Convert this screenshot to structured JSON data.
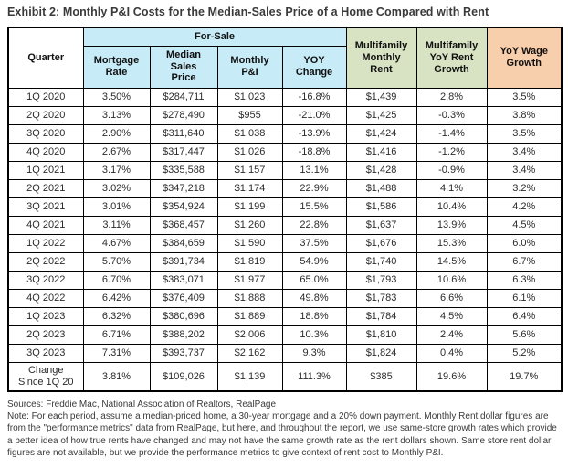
{
  "title": "Exhibit 2: Monthly P&I Costs for the Median-Sales Price of a Home Compared with Rent",
  "colors": {
    "for_sale_header": "#c7ebf7",
    "multifamily_header": "#d8e3c3",
    "wage_header": "#f8cfad",
    "border": "#000000",
    "background": "#ffffff"
  },
  "table": {
    "header": {
      "quarter": "Quarter",
      "for_sale_group": "For-Sale",
      "mortgage_rate": "Mortgage\nRate",
      "median_sales_price": "Median\nSales\nPrice",
      "monthly_pi": "Monthly\nP&I",
      "yoy_change": "YOY\nChange",
      "multifamily_monthly_rent": "Multifamily\nMonthly\nRent",
      "multifamily_yoy_rent_growth": "Multifamily\nYoY Rent\nGrowth",
      "yoy_wage_growth": "YoY Wage\nGrowth"
    },
    "rows": [
      {
        "quarter": "1Q 2020",
        "values": [
          "3.50%",
          "$284,711",
          "$1,023",
          "-16.8%",
          "$1,439",
          "2.8%",
          "3.5%"
        ]
      },
      {
        "quarter": "2Q 2020",
        "values": [
          "3.13%",
          "$278,490",
          "$955",
          "-21.0%",
          "$1,425",
          "-0.3%",
          "3.8%"
        ]
      },
      {
        "quarter": "3Q 2020",
        "values": [
          "2.90%",
          "$311,640",
          "$1,038",
          "-13.9%",
          "$1,424",
          "-1.4%",
          "3.5%"
        ]
      },
      {
        "quarter": "4Q 2020",
        "values": [
          "2.67%",
          "$317,447",
          "$1,026",
          "-18.8%",
          "$1,416",
          "-1.2%",
          "3.4%"
        ]
      },
      {
        "quarter": "1Q 2021",
        "values": [
          "3.17%",
          "$335,588",
          "$1,157",
          "13.1%",
          "$1,428",
          "-0.9%",
          "3.4%"
        ]
      },
      {
        "quarter": "2Q 2021",
        "values": [
          "3.02%",
          "$347,218",
          "$1,174",
          "22.9%",
          "$1,488",
          "4.1%",
          "3.2%"
        ]
      },
      {
        "quarter": "3Q 2021",
        "values": [
          "3.01%",
          "$354,924",
          "$1,199",
          "15.5%",
          "$1,586",
          "10.4%",
          "4.2%"
        ]
      },
      {
        "quarter": "4Q 2021",
        "values": [
          "3.11%",
          "$368,457",
          "$1,260",
          "22.8%",
          "$1,637",
          "13.9%",
          "4.5%"
        ]
      },
      {
        "quarter": "1Q 2022",
        "values": [
          "4.67%",
          "$384,659",
          "$1,590",
          "37.5%",
          "$1,676",
          "15.3%",
          "6.0%"
        ]
      },
      {
        "quarter": "2Q 2022",
        "values": [
          "5.70%",
          "$391,734",
          "$1,819",
          "54.9%",
          "$1,740",
          "14.5%",
          "6.7%"
        ]
      },
      {
        "quarter": "3Q 2022",
        "values": [
          "6.70%",
          "$383,071",
          "$1,977",
          "65.0%",
          "$1,793",
          "10.6%",
          "6.3%"
        ]
      },
      {
        "quarter": "4Q 2022",
        "values": [
          "6.42%",
          "$376,409",
          "$1,888",
          "49.8%",
          "$1,783",
          "6.6%",
          "6.1%"
        ]
      },
      {
        "quarter": "1Q 2023",
        "values": [
          "6.32%",
          "$380,696",
          "$1,889",
          "18.8%",
          "$1,784",
          "4.5%",
          "6.4%"
        ]
      },
      {
        "quarter": "2Q 2023",
        "values": [
          "6.71%",
          "$388,202",
          "$2,006",
          "10.3%",
          "$1,810",
          "2.4%",
          "5.6%"
        ]
      },
      {
        "quarter": "3Q 2023",
        "values": [
          "7.31%",
          "$393,737",
          "$2,162",
          "9.3%",
          "$1,824",
          "0.4%",
          "5.2%"
        ]
      }
    ],
    "summary_row": {
      "quarter": "Change\nSince 1Q 20",
      "values": [
        "3.81%",
        "$109,026",
        "$1,139",
        "111.3%",
        "$385",
        "19.6%",
        "19.7%"
      ]
    }
  },
  "footer": {
    "sources": "Sources: Freddie Mac, National Association of Realtors, RealPage",
    "note": "Note: For each period, assume a median-priced home, a 30-year mortgage and a 20% down payment. Monthly Rent dollar figures are from the \"performance metrics\" data from RealPage, but here, and throughout the report, we use same-store growth rates which provide a better idea of how true rents have changed and may not have the same growth rate as the rent dollars shown. Same store rent dollar figures are not available, but we provide the performance metrics to give context of rent cost to Monthly P&I."
  }
}
